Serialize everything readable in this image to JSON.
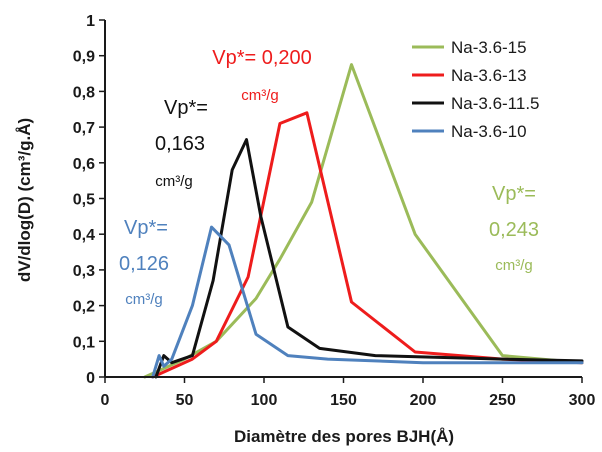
{
  "chart_data": {
    "type": "line",
    "xlabel": "Diamètre des pores BJH(Å)",
    "ylabel": "dV/dlog(D) (cm³/g.Å)",
    "xlim": [
      0,
      300
    ],
    "ylim": [
      0,
      1
    ],
    "xticks": [
      "0",
      "50",
      "100",
      "150",
      "200",
      "250",
      "300"
    ],
    "yticks": [
      "0",
      "0,1",
      "0,2",
      "0,3",
      "0,4",
      "0,5",
      "0,6",
      "0,7",
      "0,8",
      "0,9",
      "1"
    ],
    "grid": false,
    "legend_position": "top-right",
    "series": [
      {
        "name": "Na-3.6-15",
        "color": "#9bbb59",
        "x": [
          25,
          35,
          50,
          70,
          95,
          110,
          130,
          155,
          195,
          250,
          300
        ],
        "y": [
          0.0,
          0.02,
          0.05,
          0.1,
          0.22,
          0.33,
          0.49,
          0.875,
          0.4,
          0.06,
          0.04
        ]
      },
      {
        "name": "Na-3.6-13",
        "color": "#ee1c1c",
        "x": [
          30,
          40,
          55,
          70,
          90,
          110,
          127,
          155,
          195,
          250,
          300
        ],
        "y": [
          0.0,
          0.02,
          0.05,
          0.1,
          0.28,
          0.71,
          0.74,
          0.21,
          0.07,
          0.05,
          0.04
        ]
      },
      {
        "name": "Na-3.6-11.5",
        "color": "#111111",
        "x": [
          32,
          37,
          42,
          55,
          68,
          80,
          89,
          98,
          115,
          135,
          170,
          250,
          300
        ],
        "y": [
          0.0,
          0.06,
          0.04,
          0.06,
          0.27,
          0.58,
          0.665,
          0.45,
          0.14,
          0.08,
          0.06,
          0.05,
          0.045
        ]
      },
      {
        "name": "Na-3.6-10",
        "color": "#4f81bd",
        "x": [
          30,
          34,
          37,
          42,
          55,
          67,
          78,
          95,
          115,
          140,
          200,
          250,
          300
        ],
        "y": [
          0.0,
          0.06,
          0.03,
          0.05,
          0.2,
          0.42,
          0.37,
          0.12,
          0.06,
          0.05,
          0.04,
          0.04,
          0.04
        ]
      }
    ],
    "annotations": [
      {
        "lines": [
          "Vp*= 0,200",
          "cm³/g"
        ],
        "color": "#ee1c1c"
      },
      {
        "lines": [
          "Vp*=",
          "0,163",
          "cm³/g"
        ],
        "color": "#111111"
      },
      {
        "lines": [
          "Vp*=",
          "0,126",
          "cm³/g"
        ],
        "color": "#4f81bd"
      },
      {
        "lines": [
          "Vp*=",
          "0,243",
          "cm³/g"
        ],
        "color": "#9bbb59"
      }
    ]
  }
}
